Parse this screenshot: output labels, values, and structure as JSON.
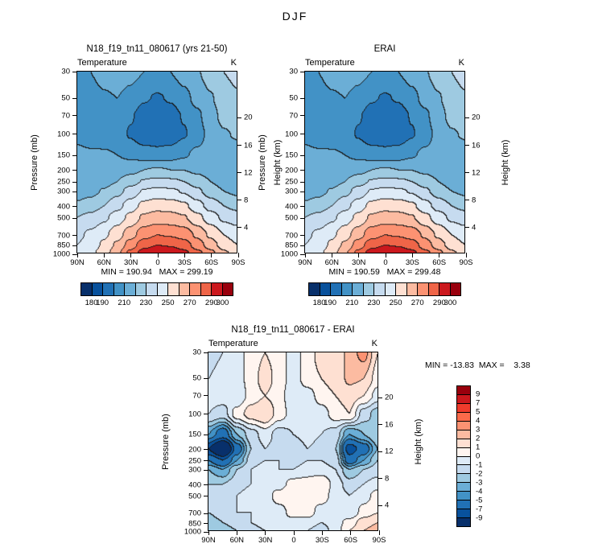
{
  "title": "DJF",
  "axes": {
    "ylabel": "Pressure (mb)",
    "ylabel_right": "Height (km)",
    "pressure_ticks": [
      30,
      50,
      70,
      100,
      150,
      200,
      250,
      300,
      400,
      500,
      700,
      850,
      1000
    ],
    "height_ticks": [
      20,
      16,
      12,
      8,
      4
    ],
    "lat_ticks": [
      "90N",
      "60N",
      "30N",
      "0",
      "30S",
      "60S",
      "90S"
    ]
  },
  "chart_data": [
    {
      "id": "model",
      "type": "heatmap",
      "title": "N18_f19_tn11_080617 (yrs 21-50)",
      "variable": "Temperature",
      "units": "K",
      "stats_label": "MIN = 190.94   MAX = 299.19",
      "min": 190.94,
      "max": 299.19,
      "x_lats_deg": [
        90,
        75,
        60,
        45,
        30,
        15,
        0,
        -15,
        -30,
        -45,
        -60,
        -75,
        -90
      ],
      "y_pressure_mb": [
        30,
        50,
        70,
        100,
        150,
        200,
        250,
        300,
        400,
        500,
        700,
        850,
        1000
      ],
      "contour_levels": [
        180,
        190,
        200,
        210,
        220,
        230,
        240,
        250,
        260,
        270,
        280,
        290,
        300
      ],
      "colors": [
        "#08306b",
        "#08519c",
        "#2171b5",
        "#4292c6",
        "#6baed6",
        "#9ecae1",
        "#c6dbef",
        "#deebf7",
        "#fee0d2",
        "#fcbba1",
        "#fc9272",
        "#ef6548",
        "#cb181d",
        "#99000d"
      ],
      "colorbar_labels": [
        "180",
        "190",
        "210",
        "230",
        "250",
        "270",
        "290",
        "300"
      ],
      "colorbar_label_positions": [
        1,
        2,
        4,
        6,
        8,
        10,
        12,
        13
      ],
      "values": [
        [
          208,
          210,
          213,
          215,
          213,
          210,
          208,
          210,
          214,
          219,
          225,
          230,
          232
        ],
        [
          206,
          207,
          209,
          210,
          207,
          201,
          199,
          201,
          207,
          213,
          219,
          226,
          229
        ],
        [
          206,
          206,
          206,
          206,
          201,
          195,
          192,
          195,
          201,
          208,
          216,
          223,
          226
        ],
        [
          209,
          207,
          206,
          204,
          199,
          193,
          191,
          193,
          199,
          206,
          213,
          219,
          221
        ],
        [
          211,
          211,
          211,
          210,
          208,
          206,
          205,
          206,
          209,
          212,
          214,
          215,
          215
        ],
        [
          212,
          212,
          213,
          215,
          217,
          220,
          221,
          220,
          220,
          218,
          216,
          214,
          213
        ],
        [
          213,
          214,
          216,
          220,
          226,
          231,
          233,
          232,
          230,
          225,
          220,
          216,
          214
        ],
        [
          215,
          217,
          221,
          227,
          234,
          241,
          243,
          242,
          239,
          232,
          225,
          220,
          218
        ],
        [
          222,
          225,
          230,
          237,
          245,
          253,
          256,
          255,
          252,
          244,
          236,
          230,
          227
        ],
        [
          230,
          233,
          238,
          245,
          253,
          262,
          265,
          264,
          261,
          253,
          245,
          238,
          235
        ],
        [
          238,
          242,
          248,
          256,
          266,
          276,
          280,
          279,
          276,
          268,
          258,
          250,
          246
        ],
        [
          240,
          244,
          252,
          262,
          275,
          286,
          290,
          289,
          285,
          275,
          265,
          255,
          250
        ],
        [
          245,
          248,
          255,
          268,
          283,
          295,
          299,
          298,
          293,
          283,
          273,
          262,
          255
        ]
      ]
    },
    {
      "id": "erai",
      "type": "heatmap",
      "title": "ERAI",
      "variable": "Temperature",
      "units": "K",
      "stats_label": "MIN = 190.59   MAX = 299.48",
      "min": 190.59,
      "max": 299.48,
      "x_lats_deg": [
        90,
        75,
        60,
        45,
        30,
        15,
        0,
        -15,
        -30,
        -45,
        -60,
        -75,
        -90
      ],
      "y_pressure_mb": [
        30,
        50,
        70,
        100,
        150,
        200,
        250,
        300,
        400,
        500,
        700,
        850,
        1000
      ],
      "contour_levels": [
        180,
        190,
        200,
        210,
        220,
        230,
        240,
        250,
        260,
        270,
        280,
        290,
        300
      ],
      "colors": [
        "#08306b",
        "#08519c",
        "#2171b5",
        "#4292c6",
        "#6baed6",
        "#9ecae1",
        "#c6dbef",
        "#deebf7",
        "#fee0d2",
        "#fcbba1",
        "#fc9272",
        "#ef6548",
        "#cb181d",
        "#99000d"
      ],
      "colorbar_labels": [
        "180",
        "190",
        "210",
        "230",
        "250",
        "270",
        "290",
        "300"
      ],
      "colorbar_label_positions": [
        1,
        2,
        4,
        6,
        8,
        10,
        12,
        13
      ],
      "values": [
        [
          208,
          210,
          213,
          215,
          213,
          210,
          208,
          210,
          214,
          219,
          225,
          230,
          233
        ],
        [
          205,
          207,
          209,
          210,
          207,
          201,
          199,
          201,
          207,
          213,
          219,
          226,
          229
        ],
        [
          206,
          206,
          206,
          206,
          201,
          195,
          192,
          194,
          201,
          208,
          216,
          223,
          226
        ],
        [
          209,
          207,
          206,
          204,
          199,
          193,
          191,
          193,
          199,
          206,
          213,
          219,
          221
        ],
        [
          211,
          211,
          211,
          210,
          208,
          206,
          205,
          206,
          209,
          212,
          214,
          215,
          215
        ],
        [
          212,
          212,
          213,
          215,
          217,
          220,
          221,
          220,
          220,
          218,
          216,
          214,
          213
        ],
        [
          213,
          214,
          216,
          220,
          226,
          231,
          233,
          232,
          230,
          225,
          220,
          216,
          214
        ],
        [
          215,
          217,
          221,
          227,
          234,
          241,
          243,
          242,
          239,
          232,
          225,
          220,
          218
        ],
        [
          222,
          225,
          230,
          237,
          245,
          253,
          256,
          255,
          252,
          244,
          236,
          230,
          227
        ],
        [
          230,
          233,
          238,
          245,
          253,
          262,
          265,
          264,
          261,
          253,
          245,
          238,
          235
        ],
        [
          238,
          242,
          248,
          256,
          266,
          276,
          280,
          279,
          276,
          268,
          258,
          250,
          246
        ],
        [
          240,
          244,
          252,
          262,
          275,
          286,
          290,
          289,
          285,
          275,
          265,
          255,
          250
        ],
        [
          245,
          248,
          255,
          269,
          283,
          295,
          299,
          298,
          293,
          283,
          273,
          262,
          255
        ]
      ]
    },
    {
      "id": "diff",
      "type": "heatmap",
      "title": "N18_f19_tn11_080617 - ERAI",
      "variable": "Temperature",
      "units": "K",
      "stats_label": "MIN = -13.83  MAX =    3.38",
      "min": -13.83,
      "max": 3.38,
      "x_lats_deg": [
        90,
        75,
        60,
        45,
        30,
        15,
        0,
        -15,
        -30,
        -45,
        -60,
        -75,
        -90
      ],
      "y_pressure_mb": [
        30,
        50,
        70,
        100,
        150,
        200,
        250,
        300,
        400,
        500,
        700,
        850,
        1000
      ],
      "contour_levels": [
        -9,
        -7,
        -5,
        -4,
        -3,
        -2,
        -1,
        0,
        1,
        2,
        3,
        4,
        5,
        7,
        9
      ],
      "colors": [
        "#08306b",
        "#08519c",
        "#2171b5",
        "#4292c6",
        "#6baed6",
        "#9ecae1",
        "#c6dbef",
        "#deebf7",
        "#fff5f0",
        "#fee0d2",
        "#fcbba1",
        "#fc9272",
        "#fb6a4a",
        "#ef3b2c",
        "#cb181d",
        "#99000d"
      ],
      "colorbar_labels": [
        "9",
        "7",
        "5",
        "4",
        "3",
        "2",
        "1",
        "0",
        "-1",
        "-2",
        "-3",
        "-4",
        "-5",
        "-7",
        "-9"
      ],
      "values": [
        [
          -1.5,
          -1,
          -0.5,
          0.5,
          1,
          0.5,
          -0.5,
          0.5,
          1.5,
          1,
          2.5,
          3.4,
          1
        ],
        [
          -1,
          -0.5,
          -0.5,
          0.5,
          1.5,
          0.5,
          -0.5,
          0.5,
          1,
          1.5,
          2.2,
          2,
          0.5
        ],
        [
          -0.5,
          -0.5,
          -1,
          0.5,
          1,
          0.5,
          -1,
          -0.5,
          0.5,
          1,
          1.5,
          1,
          -0.5
        ],
        [
          -1,
          -1.5,
          0.5,
          1.5,
          2,
          0.5,
          -0.5,
          -1,
          -0.5,
          0.5,
          1,
          -1.5,
          -2.5
        ],
        [
          -4,
          -6,
          -3,
          -1.5,
          -0.5,
          -1.5,
          -1,
          -0.5,
          -1,
          -1.5,
          -4,
          -3,
          -2
        ],
        [
          -9,
          -13.8,
          -6,
          -2,
          -1,
          -1.5,
          -2,
          -1,
          -1.5,
          -2,
          -8,
          -6,
          -3
        ],
        [
          -5,
          -7,
          -4,
          -1.5,
          -1,
          -1,
          -1.5,
          -1,
          -1,
          -1.5,
          -6,
          -4,
          -2
        ],
        [
          -3,
          -4,
          -2,
          -1,
          -0.5,
          -1,
          -1,
          -0.5,
          -0.5,
          -1,
          -3,
          -2,
          -1.5
        ],
        [
          -2,
          -2,
          -1.5,
          -1,
          -0.5,
          -0.5,
          0.5,
          0.5,
          1,
          -0.5,
          -1.5,
          -1,
          -0.5
        ],
        [
          -1.5,
          -1.5,
          -1,
          -0.5,
          -0.5,
          0.5,
          1,
          0.5,
          0.5,
          -0.5,
          -1,
          -0.5,
          0.5
        ],
        [
          -2,
          -1.5,
          -1,
          -1,
          -0.5,
          -0.5,
          0.5,
          0.5,
          -0.5,
          -0.5,
          -1,
          0.5,
          1
        ],
        [
          -2.5,
          -2,
          -1.5,
          -1,
          -0.5,
          -0.5,
          -0.5,
          -0.5,
          -1,
          -0.5,
          0.5,
          1.5,
          2
        ],
        [
          -3,
          -2.5,
          -2,
          -1.5,
          -1,
          -0.5,
          -0.5,
          -1,
          -1.5,
          -0.5,
          1,
          2,
          2.5
        ]
      ]
    }
  ]
}
